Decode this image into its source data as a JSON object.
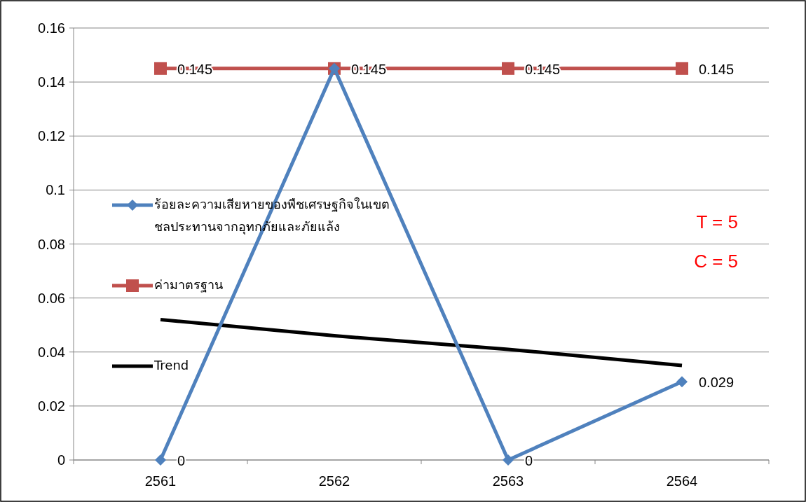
{
  "chart_data": {
    "type": "line",
    "categories": [
      "2561",
      "2562",
      "2563",
      "2564"
    ],
    "series": [
      {
        "name": "ร้อยละความเสียหายของพืชเศรษฐกิจในเขตชลประทานจากอุทกภัยและภัยแล้ง",
        "color": "#4f81bd",
        "marker": "diamond",
        "values": [
          0,
          0.145,
          0,
          0.029
        ],
        "value_labels": [
          "0",
          null,
          "0",
          "0.029"
        ]
      },
      {
        "name": "ค่ามาตรฐาน",
        "color": "#c0504d",
        "marker": "square",
        "values": [
          0.145,
          0.145,
          0.145,
          0.145
        ],
        "data_labels": true
      },
      {
        "name": "Trend",
        "color": "#000000",
        "marker": "none",
        "values": [
          0.052,
          0.046,
          0.041,
          0.035
        ]
      }
    ],
    "ylim": [
      0,
      0.16
    ],
    "yticks": [
      0,
      0.02,
      0.04,
      0.06,
      0.08,
      0.1,
      0.12,
      0.14,
      0.16
    ],
    "grid": "y",
    "legend": "left",
    "annotations": [
      "T = 5",
      "C = 5"
    ]
  }
}
